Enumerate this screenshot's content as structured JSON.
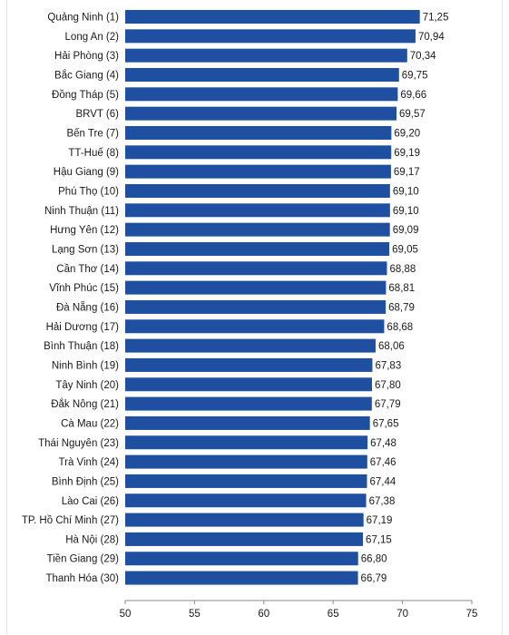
{
  "chart_data": {
    "type": "bar",
    "orientation": "horizontal",
    "categories": [
      "Quảng Ninh (1)",
      "Long An (2)",
      "Hải Phòng (3)",
      "Bắc Giang (4)",
      "Đồng Tháp (5)",
      "BRVT (6)",
      "Bến Tre (7)",
      "TT-Huế (8)",
      "Hậu Giang (9)",
      "Phú Thọ (10)",
      "Ninh Thuận (11)",
      "Hưng Yên (12)",
      "Lạng Sơn (13)",
      "Cần Thơ (14)",
      "Vĩnh Phúc (15)",
      "Đà Nẵng (16)",
      "Hải Dương (17)",
      "Bình Thuận (18)",
      "Ninh Bình (19)",
      "Tây Ninh (20)",
      "Đắk Nông (21)",
      "Cà Mau (22)",
      "Thái Nguyên (23)",
      "Trà Vinh (24)",
      "Bình Định (25)",
      "Lào Cai (26)",
      "TP. Hồ Chí Minh (27)",
      "Hà Nội (28)",
      "Tiền Giang (29)",
      "Thanh Hóa (30)"
    ],
    "values": [
      71.25,
      70.94,
      70.34,
      69.75,
      69.66,
      69.57,
      69.2,
      69.19,
      69.17,
      69.1,
      69.1,
      69.09,
      69.05,
      68.88,
      68.81,
      68.79,
      68.68,
      68.06,
      67.83,
      67.8,
      67.79,
      67.65,
      67.48,
      67.46,
      67.44,
      67.38,
      67.19,
      67.15,
      66.8,
      66.79
    ],
    "value_labels": [
      "71,25",
      "70,94",
      "70,34",
      "69,75",
      "69,66",
      "69,57",
      "69,20",
      "69,19",
      "69,17",
      "69,10",
      "69,10",
      "69,09",
      "69,05",
      "68,88",
      "68,81",
      "68,79",
      "68,68",
      "68,06",
      "67,83",
      "67,80",
      "67,79",
      "67,65",
      "67,48",
      "67,46",
      "67,44",
      "67,38",
      "67,19",
      "67,15",
      "66,80",
      "66,79"
    ],
    "xlim": [
      50,
      75
    ],
    "xticks": [
      50,
      55,
      60,
      65,
      70,
      75
    ],
    "grid": false,
    "legend": "none",
    "bar_color": "#1f4fa0"
  }
}
